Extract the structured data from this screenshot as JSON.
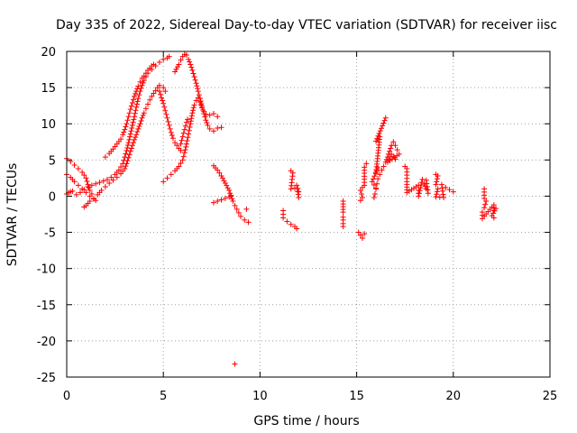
{
  "chart_data": {
    "type": "scatter",
    "title": "Day 335 of 2022, Sidereal Day-to-day VTEC variation (SDTVAR) for receiver iisc",
    "xlabel": "GPS time / hours",
    "ylabel": "SDTVAR / TECUs",
    "xlim": [
      0,
      25
    ],
    "ylim": [
      -25,
      20
    ],
    "xticks": [
      0,
      5,
      10,
      15,
      20,
      25
    ],
    "yticks": [
      -25,
      -20,
      -15,
      -10,
      -5,
      0,
      5,
      10,
      15,
      20
    ],
    "xtick_labels": [
      "0",
      "5",
      "10",
      "15",
      "20",
      "25"
    ],
    "ytick_labels": [
      "-25",
      "-20",
      "-15",
      "-10",
      "-5",
      "0",
      "5",
      "10",
      "15",
      "20"
    ],
    "grid": true,
    "marker": "+",
    "color": "#ff0000",
    "tracks": [
      {
        "name": "arc-a",
        "points": [
          [
            0.0,
            5.2
          ],
          [
            0.2,
            4.8
          ],
          [
            0.4,
            4.3
          ],
          [
            0.6,
            3.8
          ],
          [
            0.8,
            3.3
          ],
          [
            1.0,
            2.5
          ],
          [
            1.1,
            1.6
          ],
          [
            1.2,
            0.8
          ],
          [
            1.3,
            0.3
          ]
        ]
      },
      {
        "name": "arc-b",
        "points": [
          [
            0.0,
            3.0
          ],
          [
            0.2,
            2.6
          ],
          [
            0.4,
            2.0
          ],
          [
            0.6,
            1.5
          ],
          [
            0.8,
            1.0
          ],
          [
            1.0,
            0.5
          ],
          [
            1.2,
            0.0
          ],
          [
            1.4,
            -0.4
          ],
          [
            1.5,
            -0.6
          ]
        ]
      },
      {
        "name": "arc-c",
        "points": [
          [
            0.0,
            0.3
          ],
          [
            0.1,
            0.5
          ],
          [
            0.2,
            0.6
          ],
          [
            0.3,
            0.7
          ]
        ]
      },
      {
        "name": "arc-d",
        "points": [
          [
            0.9,
            -1.5
          ],
          [
            1.0,
            -1.3
          ],
          [
            1.1,
            -1.0
          ],
          [
            1.2,
            -0.7
          ],
          [
            1.4,
            -0.3
          ],
          [
            1.6,
            0.2
          ],
          [
            1.8,
            0.8
          ],
          [
            2.0,
            1.3
          ],
          [
            2.2,
            1.8
          ],
          [
            2.4,
            2.2
          ],
          [
            2.6,
            2.6
          ],
          [
            2.8,
            3.1
          ],
          [
            3.0,
            3.8
          ],
          [
            3.1,
            4.5
          ],
          [
            3.2,
            5.3
          ],
          [
            3.3,
            6.2
          ],
          [
            3.4,
            7.0
          ],
          [
            3.5,
            7.8
          ],
          [
            3.6,
            8.5
          ],
          [
            3.7,
            9.3
          ],
          [
            3.8,
            10.0
          ],
          [
            3.9,
            10.8
          ],
          [
            4.0,
            11.5
          ],
          [
            4.1,
            12.1
          ],
          [
            4.2,
            12.7
          ],
          [
            4.3,
            13.3
          ],
          [
            4.4,
            13.8
          ],
          [
            4.5,
            14.2
          ],
          [
            4.6,
            14.6
          ],
          [
            4.7,
            15.0
          ],
          [
            4.8,
            15.3
          ],
          [
            5.0,
            15.0
          ],
          [
            5.1,
            14.5
          ]
        ]
      },
      {
        "name": "arc-e",
        "points": [
          [
            0.5,
            0.2
          ],
          [
            0.7,
            0.5
          ],
          [
            0.9,
            0.9
          ],
          [
            1.1,
            1.3
          ],
          [
            1.3,
            1.5
          ],
          [
            1.5,
            1.7
          ],
          [
            1.7,
            1.9
          ],
          [
            1.9,
            2.1
          ],
          [
            2.1,
            2.3
          ],
          [
            2.3,
            2.6
          ],
          [
            2.5,
            3.0
          ],
          [
            2.7,
            3.6
          ],
          [
            2.9,
            4.5
          ],
          [
            3.0,
            5.4
          ],
          [
            3.1,
            6.3
          ],
          [
            3.2,
            7.4
          ],
          [
            3.3,
            8.6
          ],
          [
            3.4,
            9.8
          ],
          [
            3.5,
            11.0
          ],
          [
            3.6,
            12.3
          ],
          [
            3.7,
            13.5
          ],
          [
            3.8,
            14.5
          ],
          [
            3.9,
            15.3
          ],
          [
            4.0,
            16.0
          ],
          [
            4.1,
            16.5
          ],
          [
            4.2,
            17.0
          ],
          [
            4.4,
            17.5
          ],
          [
            4.6,
            18.0
          ],
          [
            4.8,
            18.5
          ],
          [
            5.0,
            18.9
          ],
          [
            5.2,
            19.1
          ],
          [
            5.3,
            19.3
          ]
        ]
      },
      {
        "name": "arc-f",
        "points": [
          [
            2.0,
            5.4
          ],
          [
            2.2,
            5.9
          ],
          [
            2.4,
            6.5
          ],
          [
            2.6,
            7.2
          ],
          [
            2.8,
            7.9
          ],
          [
            2.9,
            8.5
          ],
          [
            3.0,
            9.2
          ],
          [
            3.1,
            10.0
          ],
          [
            3.2,
            11.0
          ],
          [
            3.3,
            12.0
          ],
          [
            3.4,
            12.9
          ],
          [
            3.5,
            13.8
          ],
          [
            3.6,
            14.5
          ],
          [
            3.7,
            15.2
          ],
          [
            3.8,
            15.8
          ],
          [
            3.9,
            16.3
          ],
          [
            4.0,
            16.6
          ],
          [
            4.2,
            17.4
          ],
          [
            4.4,
            18.0
          ],
          [
            4.5,
            18.2
          ]
        ]
      },
      {
        "name": "arc-g",
        "points": [
          [
            4.8,
            14.5
          ],
          [
            4.9,
            13.6
          ],
          [
            5.0,
            12.8
          ],
          [
            5.1,
            11.8
          ],
          [
            5.2,
            10.8
          ],
          [
            5.3,
            9.8
          ],
          [
            5.4,
            8.8
          ],
          [
            5.5,
            8.0
          ],
          [
            5.6,
            7.4
          ],
          [
            5.7,
            7.0
          ],
          [
            5.8,
            6.6
          ],
          [
            5.9,
            6.3
          ]
        ]
      },
      {
        "name": "arc-h",
        "points": [
          [
            5.0,
            2.0
          ],
          [
            5.2,
            2.5
          ],
          [
            5.4,
            3.0
          ],
          [
            5.6,
            3.5
          ],
          [
            5.8,
            4.1
          ],
          [
            6.0,
            5.0
          ],
          [
            6.1,
            6.0
          ],
          [
            6.2,
            7.2
          ],
          [
            6.3,
            8.6
          ],
          [
            6.4,
            10.0
          ],
          [
            6.5,
            11.5
          ],
          [
            6.6,
            12.6
          ],
          [
            6.7,
            13.2
          ],
          [
            6.8,
            13.6
          ],
          [
            6.9,
            13.0
          ],
          [
            7.0,
            12.2
          ],
          [
            7.1,
            11.7
          ],
          [
            7.2,
            11.3
          ],
          [
            7.4,
            11.2
          ],
          [
            7.6,
            11.4
          ],
          [
            7.8,
            11.0
          ]
        ]
      },
      {
        "name": "arc-i",
        "points": [
          [
            5.6,
            17.2
          ],
          [
            5.8,
            18.2
          ],
          [
            5.9,
            18.8
          ],
          [
            6.0,
            19.3
          ],
          [
            6.1,
            19.6
          ],
          [
            6.2,
            19.5
          ],
          [
            6.3,
            18.9
          ],
          [
            6.4,
            18.2
          ],
          [
            6.5,
            17.4
          ],
          [
            6.6,
            16.5
          ],
          [
            6.7,
            15.6
          ],
          [
            6.8,
            14.5
          ],
          [
            6.9,
            13.5
          ],
          [
            7.0,
            12.4
          ],
          [
            7.1,
            11.4
          ],
          [
            7.2,
            10.5
          ],
          [
            7.3,
            9.8
          ],
          [
            7.4,
            9.3
          ],
          [
            7.6,
            9.0
          ],
          [
            7.8,
            9.4
          ],
          [
            8.0,
            9.5
          ]
        ]
      },
      {
        "name": "arc-j",
        "points": [
          [
            5.9,
            7.2
          ],
          [
            6.0,
            8.2
          ],
          [
            6.1,
            9.2
          ],
          [
            6.2,
            10.2
          ],
          [
            6.25,
            10.6
          ]
        ]
      },
      {
        "name": "arc-k",
        "points": [
          [
            7.6,
            4.2
          ],
          [
            7.8,
            3.6
          ],
          [
            8.0,
            2.8
          ],
          [
            8.2,
            1.8
          ],
          [
            8.4,
            0.8
          ],
          [
            8.5,
            0.0
          ],
          [
            8.6,
            -0.7
          ],
          [
            8.7,
            -1.3
          ],
          [
            8.8,
            -1.8
          ],
          [
            8.9,
            -2.3
          ],
          [
            9.0,
            -2.8
          ],
          [
            9.2,
            -3.3
          ],
          [
            9.4,
            -3.6
          ]
        ]
      },
      {
        "name": "arc-l",
        "points": [
          [
            7.6,
            -0.9
          ],
          [
            7.8,
            -0.7
          ],
          [
            8.0,
            -0.5
          ],
          [
            8.2,
            -0.3
          ],
          [
            8.4,
            -0.1
          ],
          [
            8.5,
            0.1
          ]
        ]
      },
      {
        "name": "arc-m",
        "points": [
          [
            9.3,
            -1.8
          ],
          [
            8.7,
            -23.2
          ]
        ]
      },
      {
        "name": "seg-11",
        "points": [
          [
            11.2,
            -2.0
          ],
          [
            11.2,
            -3.0
          ],
          [
            11.4,
            -3.5
          ],
          [
            11.6,
            -3.9
          ],
          [
            11.8,
            -4.2
          ],
          [
            11.9,
            -4.5
          ],
          [
            11.6,
            3.5
          ],
          [
            11.7,
            3.2
          ],
          [
            11.6,
            1.0
          ],
          [
            11.8,
            1.1
          ],
          [
            12.0,
            0.6
          ],
          [
            11.9,
            1.5
          ],
          [
            12.0,
            -0.2
          ]
        ]
      },
      {
        "name": "seg-14",
        "points": [
          [
            14.3,
            -0.7
          ],
          [
            14.3,
            -2.2
          ],
          [
            14.3,
            -2.9
          ],
          [
            14.3,
            -3.3
          ],
          [
            14.3,
            -3.8
          ],
          [
            14.3,
            -4.2
          ]
        ]
      },
      {
        "name": "seg-15",
        "points": [
          [
            15.1,
            -5.0
          ],
          [
            15.2,
            -5.4
          ],
          [
            15.3,
            -5.8
          ],
          [
            15.2,
            -0.6
          ],
          [
            15.3,
            -0.2
          ],
          [
            15.2,
            0.8
          ],
          [
            15.3,
            1.2
          ],
          [
            15.4,
            1.5
          ],
          [
            15.4,
            4.0
          ],
          [
            15.5,
            4.5
          ],
          [
            15.4,
            -5.2
          ]
        ]
      },
      {
        "name": "seg-16",
        "points": [
          [
            15.9,
            -0.2
          ],
          [
            15.95,
            0.3
          ],
          [
            16.0,
            1.0
          ],
          [
            16.05,
            1.7
          ],
          [
            16.1,
            2.4
          ],
          [
            16.2,
            3.0
          ],
          [
            16.3,
            3.6
          ],
          [
            16.4,
            4.1
          ],
          [
            16.5,
            4.7
          ],
          [
            16.6,
            5.4
          ],
          [
            16.7,
            6.2
          ],
          [
            16.8,
            7.0
          ],
          [
            16.9,
            7.5
          ],
          [
            17.0,
            7.0
          ],
          [
            17.1,
            6.4
          ],
          [
            17.2,
            5.8
          ],
          [
            16.6,
            4.7
          ],
          [
            16.8,
            5.8
          ],
          [
            17.0,
            5.1
          ],
          [
            16.5,
            10.8
          ],
          [
            16.0,
            7.6
          ],
          [
            16.2,
            8.2
          ],
          [
            16.0,
            3.3
          ],
          [
            16.1,
            3.9
          ],
          [
            15.8,
            2.0
          ],
          [
            16.0,
            1.1
          ]
        ]
      },
      {
        "name": "seg-17",
        "points": [
          [
            17.5,
            4.1
          ],
          [
            17.6,
            3.8
          ],
          [
            17.6,
            2.0
          ],
          [
            17.6,
            0.5
          ],
          [
            18.2,
            1.5
          ],
          [
            18.2,
            0.8
          ],
          [
            18.2,
            0.0
          ],
          [
            18.4,
            2.3
          ],
          [
            18.5,
            1.7
          ],
          [
            18.6,
            1.0
          ],
          [
            18.7,
            0.4
          ],
          [
            18.6,
            2.2
          ]
        ]
      },
      {
        "name": "seg-19",
        "points": [
          [
            19.1,
            3.0
          ],
          [
            19.2,
            2.8
          ],
          [
            19.1,
            1.6
          ],
          [
            19.2,
            1.0
          ],
          [
            19.1,
            -0.1
          ],
          [
            19.5,
            -0.2
          ],
          [
            19.4,
            1.6
          ],
          [
            19.6,
            1.2
          ],
          [
            19.8,
            0.9
          ],
          [
            20.0,
            0.6
          ]
        ]
      },
      {
        "name": "seg-21",
        "points": [
          [
            21.6,
            1.0
          ],
          [
            21.6,
            -0.3
          ],
          [
            21.7,
            -0.7
          ],
          [
            21.6,
            -1.6
          ],
          [
            21.5,
            -2.2
          ],
          [
            21.5,
            -3.1
          ],
          [
            22.0,
            -1.5
          ],
          [
            22.1,
            -1.2
          ],
          [
            22.1,
            -2.0
          ],
          [
            22.2,
            -1.7
          ],
          [
            22.0,
            -2.7
          ],
          [
            22.1,
            -3.0
          ]
        ]
      }
    ]
  }
}
